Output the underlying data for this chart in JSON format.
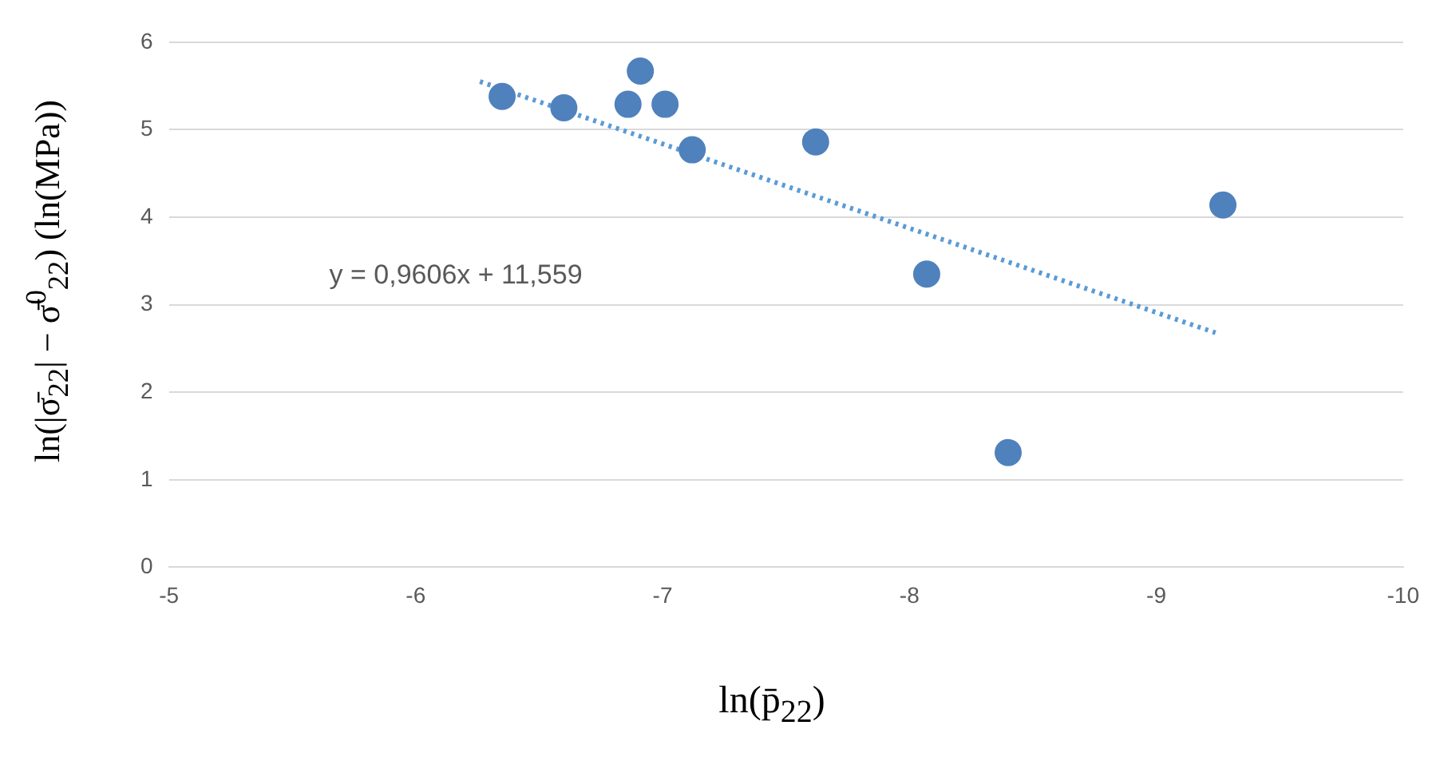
{
  "chart_data": {
    "type": "scatter",
    "xlabel": "ln(p̄$_{22}$)",
    "ylabel": "ln(|σ̄$_{22}$| − σ̄$^{0}$$_{22}$)   (ln(MPa))",
    "annotations": [
      "y = 0,9606x + 11,559"
    ],
    "xlim": [
      -5,
      -10
    ],
    "xticks": [
      -5,
      -6,
      -7,
      -8,
      -9,
      -10
    ],
    "ylim": [
      0,
      6
    ],
    "yticks": [
      0,
      1,
      2,
      3,
      4,
      5,
      6
    ],
    "grid": "y",
    "marker": "circle",
    "series": [
      {
        "type": "scatter",
        "color": "#4f81bd",
        "x": [
          -6.35,
          -6.6,
          -6.86,
          -6.91,
          -7.01,
          -7.12,
          -7.62,
          -8.07,
          -8.4,
          -9.27
        ],
        "values": [
          5.38,
          5.25,
          5.29,
          5.67,
          5.29,
          4.77,
          4.86,
          3.35,
          1.31,
          4.14
        ]
      },
      {
        "type": "line",
        "color": "#5b9bd5",
        "line_style": "dotted",
        "marker": "none",
        "x": [
          -6.26,
          -9.24
        ],
        "values": [
          5.55,
          2.68
        ]
      }
    ]
  }
}
